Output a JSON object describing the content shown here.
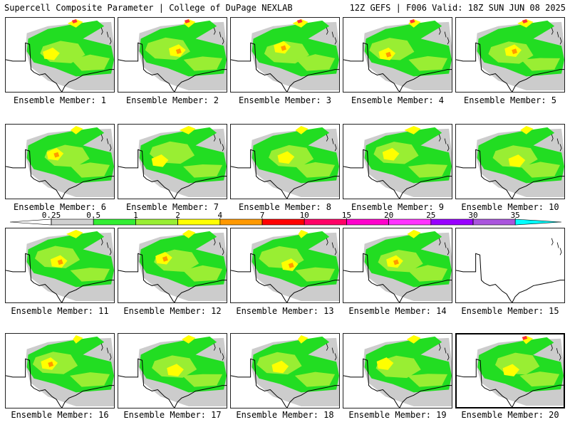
{
  "header": {
    "title": "Supercell Composite Parameter | College of DuPage NEXLAB",
    "run_info": "12Z GEFS | F006 Valid: 18Z SUN JUN 08 2025"
  },
  "member_label_prefix": "Ensemble Member: ",
  "members": [
    {
      "id": 1,
      "pattern": 0
    },
    {
      "id": 2,
      "pattern": 1
    },
    {
      "id": 3,
      "pattern": 2
    },
    {
      "id": 4,
      "pattern": 3
    },
    {
      "id": 5,
      "pattern": 4
    },
    {
      "id": 6,
      "pattern": 5
    },
    {
      "id": 7,
      "pattern": 6
    },
    {
      "id": 8,
      "pattern": 7
    },
    {
      "id": 9,
      "pattern": 8
    },
    {
      "id": 10,
      "pattern": 9
    },
    {
      "id": 11,
      "pattern": 10
    },
    {
      "id": 12,
      "pattern": 11
    },
    {
      "id": 13,
      "pattern": 12
    },
    {
      "id": 14,
      "pattern": 13
    },
    {
      "id": 15,
      "pattern": -1
    },
    {
      "id": 16,
      "pattern": 14
    },
    {
      "id": 17,
      "pattern": 15
    },
    {
      "id": 18,
      "pattern": 16
    },
    {
      "id": 19,
      "pattern": 17
    },
    {
      "id": 20,
      "pattern": 18
    }
  ],
  "selected_member": 20,
  "colorbar": {
    "labels": [
      "0.25",
      "0.5",
      "1",
      "2",
      "4",
      "7",
      "10",
      "15",
      "20",
      "25",
      "30",
      "35"
    ],
    "colors": [
      "#d0d0d0",
      "#33ee33",
      "#99ee33",
      "#ffff00",
      "#ff9900",
      "#ff0000",
      "#ff0066",
      "#ff00cc",
      "#ff33ff",
      "#9900ff",
      "#aa55dd",
      "#00ffff"
    ],
    "below_color": "#ffffff",
    "field_colors": {
      "grey": "#cccccc",
      "green": "#22dd22",
      "lime": "#99ee33",
      "yellow": "#ffff00",
      "orange": "#ff9900",
      "red": "#ff3333"
    }
  }
}
